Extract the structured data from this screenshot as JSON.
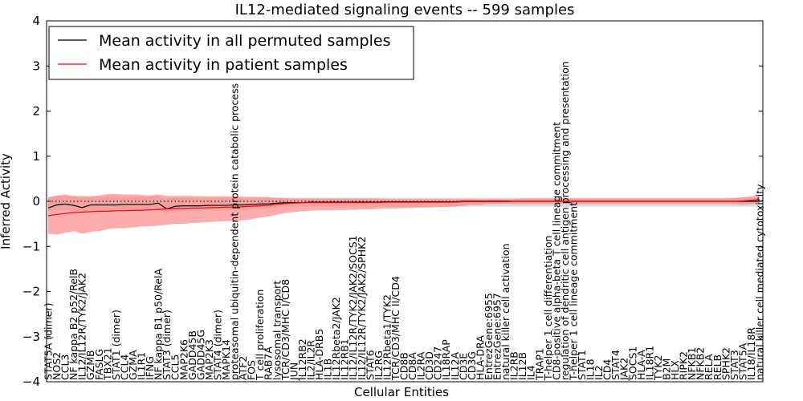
{
  "chart_data": {
    "type": "line",
    "title": "IL12-mediated signaling events -- 599 samples",
    "xlabel": "Cellular Entities",
    "ylabel": "Inferred Activity",
    "ylim": [
      -4,
      4
    ],
    "yticks": [
      "−4",
      "−3",
      "−2",
      "−1",
      "0",
      "1",
      "2",
      "3",
      "4"
    ],
    "legend": {
      "position": "top-left",
      "entries": [
        {
          "label": "Mean activity in all permuted samples",
          "color": "#000000"
        },
        {
          "label": "Mean activity in patient samples",
          "color": "#ff0000"
        }
      ]
    },
    "colors": {
      "patient": "#ff0000",
      "patient_band": "#ff8080",
      "permuted": "#000000",
      "permuted_band": "#bfbfbf"
    },
    "categories": [
      "STAT5A (dimer)",
      "NOS2",
      "CCL3",
      "NF kappa B2 p52/RelB",
      "IL12/IL12R/TYK2/JAK2",
      "GZMB",
      "FASLG",
      "TBX21",
      "STAT1 (dimer)",
      "CCL4",
      "GZMA",
      "IL1R1",
      "IFNG",
      "NF kappa B1 p50/RelA",
      "STAT3 (dimer)",
      "CCL5",
      "MAP2K6",
      "GADD45B",
      "GADD45G",
      "MAP2K3",
      "STAT4 (dimer)",
      "MAPK14",
      "proteasomal ubiquitin-dependent protein catabolic process",
      "ATF2",
      "FOS",
      "T cell proliferation",
      "RAB7A",
      "lysosomal transport",
      "TCR/CD3/MHC I/CD8",
      "JUN",
      "IL12RB2",
      "IL2/IL2R",
      "HLA-DRB5",
      "IL1B",
      "IL12Rbeta2/JAK2",
      "IL12RB1",
      "IL12/IL12R/TYK2/JAK2/SOCS1",
      "IL12/IL12R/TYK2/JAK2/SPHK2",
      "STAT6",
      "IL2RG",
      "IL12Rbeta1/TYK2",
      "TCR/CD3/MHC II/CD4",
      "CD8B",
      "CD8A",
      "IL2RA",
      "CD3D",
      "CD247",
      "IL18RAP",
      "IL12A",
      "CD3E",
      "CD3G",
      "HLA-DRA",
      "EntrezGene:6955",
      "EntrezGene:6957",
      "natural killer cell activation",
      "IL2RB",
      "IL12B",
      "IL4",
      "TRAP1",
      "T-helper 1 cell differentiation",
      "CD8-positive alpha-beta T cell lineage commitment",
      "regulation of dendritic cell antigen processing and presentation",
      "T-helper 1 cell lineage commitment",
      "STAT1",
      "IL18",
      "IL2",
      "CD4",
      "STAT4",
      "JAK2",
      "SOCS1",
      "HLA-A",
      "IL18R1",
      "TYK2",
      "B2M",
      "HLX",
      "RIPK2",
      "NFKB1",
      "NFKB2",
      "RELA",
      "RELB",
      "SPHK2",
      "STAT3",
      "STAT5A",
      "IL18/IL18R",
      "natural killer cell mediated cytotoxicity"
    ],
    "series": [
      {
        "name": "Mean activity in all permuted samples",
        "values": [
          -0.15,
          -0.08,
          -0.06,
          -0.09,
          -0.14,
          -0.08,
          -0.08,
          -0.08,
          -0.08,
          -0.07,
          -0.07,
          -0.07,
          -0.07,
          -0.04,
          -0.17,
          -0.11,
          -0.1,
          -0.1,
          -0.1,
          -0.09,
          -0.09,
          -0.09,
          -0.08,
          -0.08,
          -0.07,
          -0.06,
          -0.06,
          -0.04,
          -0.03,
          -0.03,
          -0.03,
          -0.02,
          -0.02,
          -0.02,
          -0.02,
          -0.02,
          -0.02,
          -0.02,
          -0.02,
          -0.02,
          -0.01,
          -0.01,
          -0.01,
          -0.01,
          -0.01,
          -0.01,
          -0.01,
          -0.01,
          -0.01,
          0.0,
          0.0,
          0.0,
          0.0,
          0.0,
          0.0,
          0.0,
          0.0,
          0.0,
          0.0,
          0.0,
          0.0,
          0.0,
          0.0,
          0.0,
          0.0,
          0.0,
          0.0,
          0.0,
          0.0,
          0.0,
          0.0,
          0.0,
          0.0,
          0.0,
          0.0,
          0.0,
          0.0,
          0.0,
          0.0,
          0.0,
          0.0,
          0.0,
          0.0,
          0.0,
          0.0
        ],
        "band_low": [
          -0.22,
          -0.2,
          -0.2,
          -0.22,
          -0.24,
          -0.2,
          -0.2,
          -0.2,
          -0.2,
          -0.2,
          -0.2,
          -0.2,
          -0.2,
          -0.18,
          -0.26,
          -0.22,
          -0.22,
          -0.22,
          -0.22,
          -0.2,
          -0.2,
          -0.2,
          -0.2,
          -0.2,
          -0.18,
          -0.16,
          -0.16,
          -0.14,
          -0.12,
          -0.12,
          -0.12,
          -0.12,
          -0.12,
          -0.12,
          -0.12,
          -0.12,
          -0.12,
          -0.12,
          -0.12,
          -0.12,
          -0.12,
          -0.12,
          -0.12,
          -0.12,
          -0.12,
          -0.12,
          -0.12,
          -0.12,
          -0.12,
          -0.12,
          -0.12,
          -0.12,
          -0.12,
          -0.12,
          -0.12,
          -0.12,
          -0.12,
          -0.12,
          -0.12,
          -0.12,
          -0.12,
          -0.12,
          -0.12,
          -0.12,
          -0.12,
          -0.12,
          -0.12,
          -0.12,
          -0.12,
          -0.12,
          -0.12,
          -0.12,
          -0.12,
          -0.12,
          -0.12,
          -0.12,
          -0.12,
          -0.12,
          -0.12,
          -0.12,
          -0.12,
          -0.12,
          -0.12,
          -0.12,
          -0.12
        ],
        "band_high": [
          0.1,
          0.12,
          0.12,
          0.1,
          0.08,
          0.1,
          0.1,
          0.1,
          0.1,
          0.1,
          0.1,
          0.1,
          0.1,
          0.12,
          0.06,
          0.08,
          0.08,
          0.08,
          0.08,
          0.08,
          0.08,
          0.08,
          0.08,
          0.08,
          0.08,
          0.08,
          0.08,
          0.08,
          0.08,
          0.08,
          0.08,
          0.08,
          0.08,
          0.08,
          0.08,
          0.08,
          0.08,
          0.08,
          0.08,
          0.08,
          0.08,
          0.08,
          0.08,
          0.08,
          0.08,
          0.08,
          0.08,
          0.08,
          0.08,
          0.08,
          0.08,
          0.08,
          0.08,
          0.08,
          0.08,
          0.08,
          0.08,
          0.08,
          0.08,
          0.08,
          0.08,
          0.08,
          0.08,
          0.08,
          0.08,
          0.08,
          0.08,
          0.08,
          0.08,
          0.08,
          0.08,
          0.08,
          0.08,
          0.08,
          0.08,
          0.08,
          0.08,
          0.08,
          0.08,
          0.08,
          0.08,
          0.08,
          0.08,
          0.08,
          0.08
        ]
      },
      {
        "name": "Mean activity in patient samples",
        "values": [
          -0.32,
          -0.29,
          -0.27,
          -0.25,
          -0.24,
          -0.23,
          -0.22,
          -0.22,
          -0.21,
          -0.21,
          -0.2,
          -0.2,
          -0.19,
          -0.18,
          -0.17,
          -0.16,
          -0.16,
          -0.15,
          -0.15,
          -0.14,
          -0.14,
          -0.13,
          -0.13,
          -0.12,
          -0.11,
          -0.1,
          -0.09,
          -0.07,
          -0.05,
          -0.04,
          -0.03,
          -0.03,
          -0.03,
          -0.03,
          -0.03,
          -0.03,
          -0.03,
          -0.03,
          -0.03,
          -0.03,
          -0.02,
          -0.02,
          -0.02,
          -0.02,
          -0.02,
          -0.02,
          -0.02,
          -0.02,
          -0.02,
          -0.01,
          -0.01,
          -0.01,
          -0.01,
          -0.01,
          -0.01,
          0.0,
          0.0,
          0.0,
          0.0,
          0.0,
          0.0,
          0.0,
          0.0,
          0.0,
          0.0,
          0.0,
          0.0,
          0.0,
          0.0,
          0.0,
          0.0,
          0.0,
          0.0,
          0.0,
          0.0,
          0.0,
          0.0,
          0.0,
          0.0,
          0.0,
          0.0,
          0.0,
          0.01,
          0.02,
          0.04
        ],
        "band_low": [
          -0.72,
          -0.74,
          -0.7,
          -0.66,
          -0.72,
          -0.68,
          -0.66,
          -0.62,
          -0.6,
          -0.6,
          -0.58,
          -0.56,
          -0.55,
          -0.54,
          -0.52,
          -0.5,
          -0.5,
          -0.48,
          -0.47,
          -0.46,
          -0.45,
          -0.44,
          -0.44,
          -0.42,
          -0.4,
          -0.36,
          -0.34,
          -0.3,
          -0.26,
          -0.24,
          -0.22,
          -0.21,
          -0.2,
          -0.2,
          -0.2,
          -0.19,
          -0.19,
          -0.18,
          -0.18,
          -0.17,
          -0.16,
          -0.16,
          -0.15,
          -0.15,
          -0.14,
          -0.14,
          -0.13,
          -0.13,
          -0.12,
          -0.1,
          -0.08,
          -0.08,
          -0.06,
          -0.06,
          -0.06,
          -0.06,
          -0.06,
          -0.06,
          -0.06,
          -0.06,
          -0.06,
          -0.06,
          -0.06,
          -0.06,
          -0.06,
          -0.06,
          -0.06,
          -0.06,
          -0.06,
          -0.06,
          -0.06,
          -0.06,
          -0.06,
          -0.06,
          -0.06,
          -0.06,
          -0.06,
          -0.06,
          -0.06,
          -0.06,
          -0.06,
          -0.06,
          -0.08,
          -0.06,
          -0.04
        ],
        "band_high": [
          0.08,
          0.13,
          0.15,
          0.12,
          0.12,
          0.11,
          0.13,
          0.16,
          0.16,
          0.15,
          0.15,
          0.14,
          0.13,
          0.15,
          0.12,
          0.12,
          0.12,
          0.12,
          0.11,
          0.11,
          0.11,
          0.11,
          0.11,
          0.1,
          0.1,
          0.1,
          0.09,
          0.08,
          0.07,
          0.06,
          0.06,
          0.06,
          0.06,
          0.06,
          0.06,
          0.06,
          0.06,
          0.06,
          0.06,
          0.06,
          0.05,
          0.05,
          0.05,
          0.05,
          0.05,
          0.05,
          0.05,
          0.05,
          0.05,
          0.05,
          0.05,
          0.05,
          0.05,
          0.05,
          0.05,
          0.05,
          0.06,
          0.06,
          0.06,
          0.06,
          0.06,
          0.06,
          0.06,
          0.06,
          0.06,
          0.06,
          0.06,
          0.06,
          0.06,
          0.06,
          0.06,
          0.06,
          0.06,
          0.06,
          0.06,
          0.06,
          0.06,
          0.06,
          0.06,
          0.06,
          0.06,
          0.07,
          0.09,
          0.11,
          0.13
        ]
      }
    ]
  }
}
